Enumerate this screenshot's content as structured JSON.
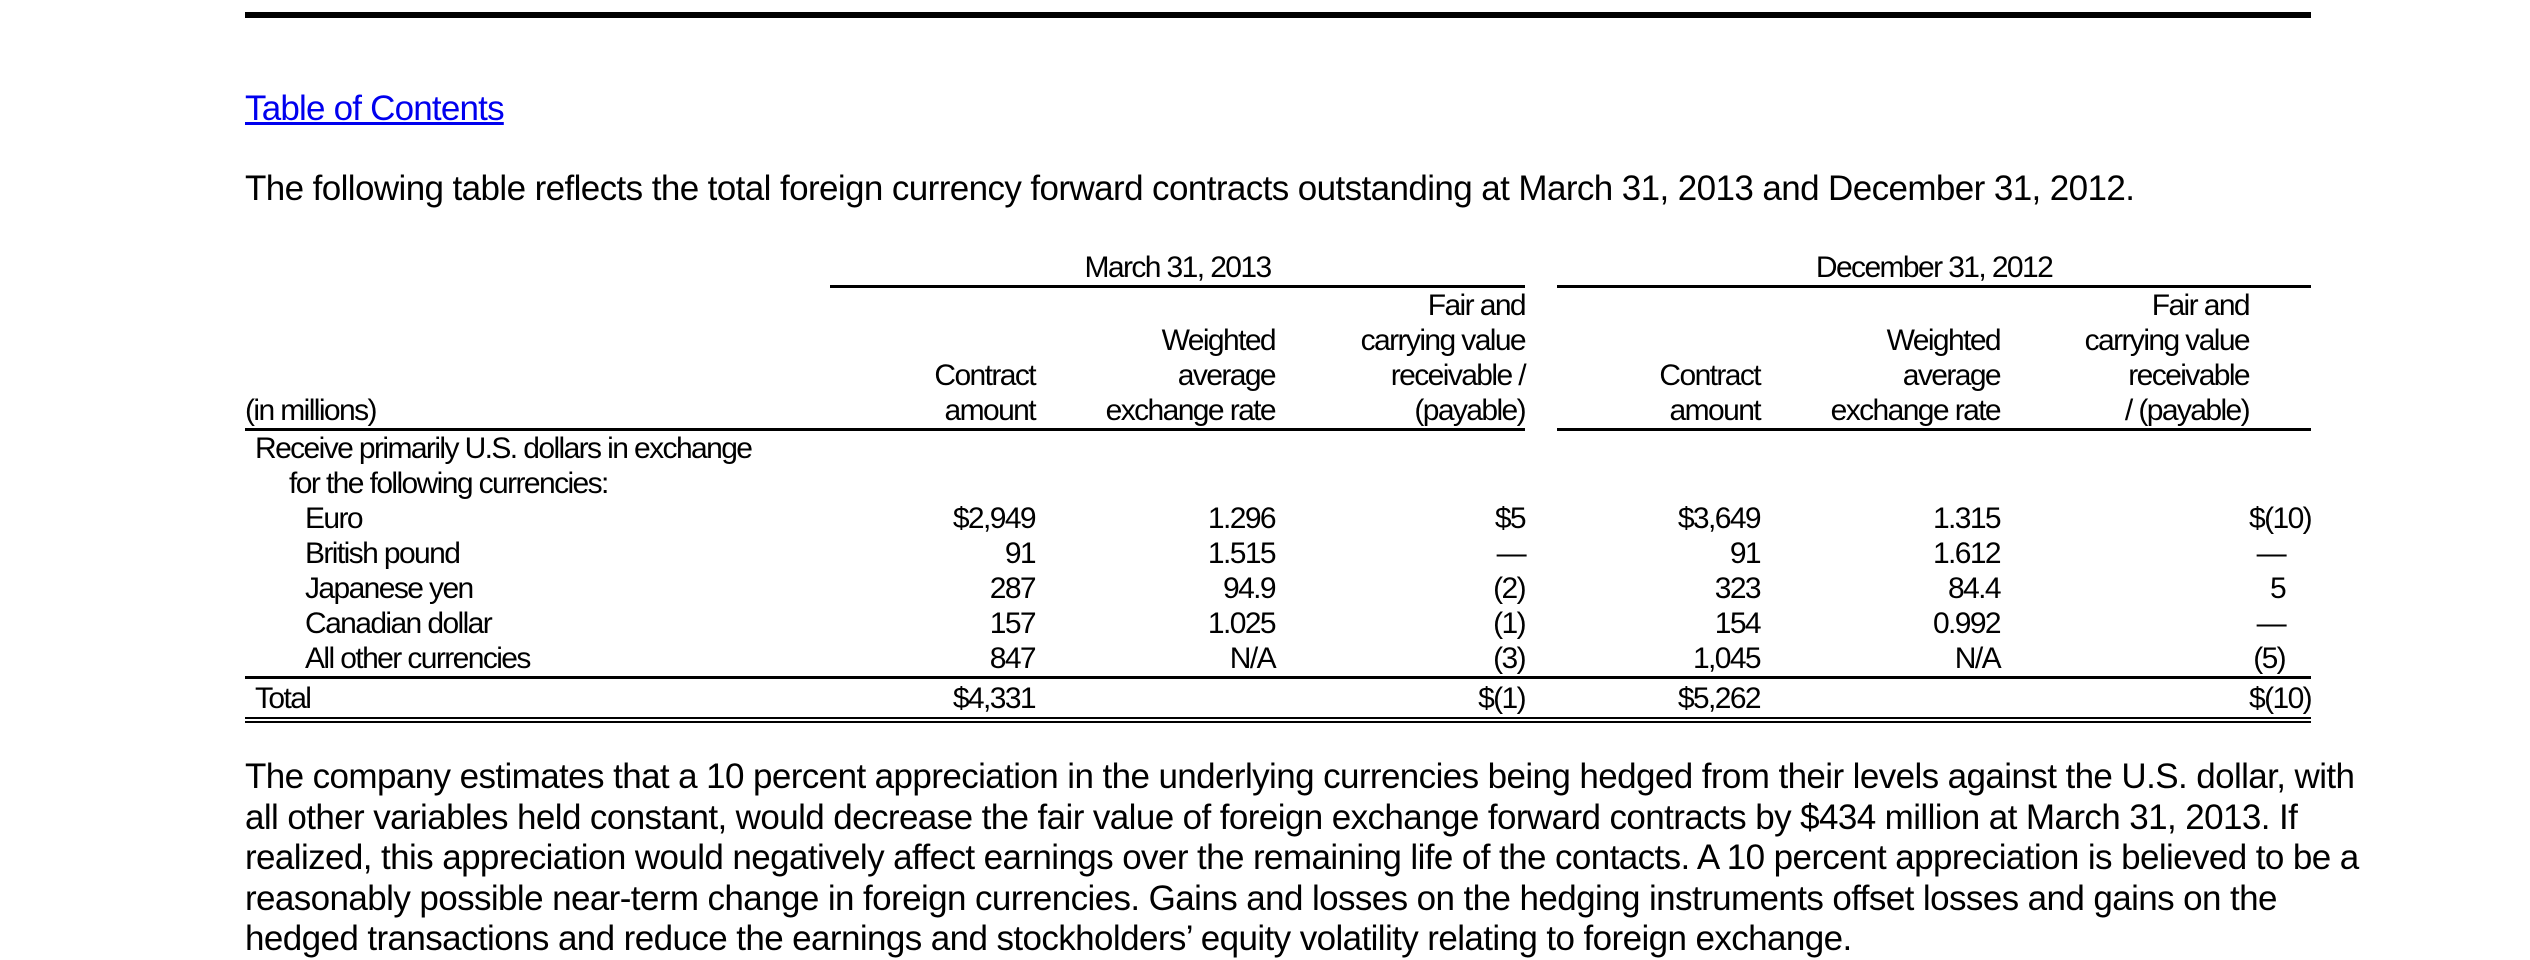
{
  "toc_link": "Table of Contents",
  "intro": "The following table reflects the total foreign currency forward contracts outstanding at March 31, 2013 and December 31, 2012.",
  "table": {
    "periods": [
      "March 31, 2013",
      "December 31, 2012"
    ],
    "units_label": "(in millions)",
    "column_headers": [
      [
        "Contract",
        "amount"
      ],
      [
        "Weighted",
        "average",
        "exchange rate"
      ],
      [
        "Fair and",
        "carrying value",
        "receivable /",
        "(payable)"
      ],
      [
        "Contract",
        "amount"
      ],
      [
        "Weighted",
        "average",
        "exchange rate"
      ],
      [
        "Fair and",
        "carrying value",
        "receivable",
        "/ (payable)"
      ]
    ],
    "section_label_line1": "Receive primarily U.S. dollars in exchange",
    "section_label_line2": "for the following currencies:",
    "rows": [
      {
        "label": "Euro",
        "c1": "$2,949",
        "c2": "1.296",
        "c3": "$5",
        "c4": "$3,649",
        "c5": "1.315",
        "c6": "$(10)"
      },
      {
        "label": "British pound",
        "c1": "91",
        "c2": "1.515",
        "c3": "—",
        "c4": "91",
        "c5": "1.612",
        "c6": "—"
      },
      {
        "label": "Japanese yen",
        "c1": "287",
        "c2": "94.9",
        "c3": "(2)",
        "c4": "323",
        "c5": "84.4",
        "c6": "5"
      },
      {
        "label": "Canadian dollar",
        "c1": "157",
        "c2": "1.025",
        "c3": "(1)",
        "c4": "154",
        "c5": "0.992",
        "c6": "—"
      },
      {
        "label": "All other currencies",
        "c1": "847",
        "c2": "N/A",
        "c3": "(3)",
        "c4": "1,045",
        "c5": "N/A",
        "c6": "(5)"
      }
    ],
    "total": {
      "label": "Total",
      "c1": "$4,331",
      "c3": "$(1)",
      "c4": "$5,262",
      "c6": "$(10)"
    }
  },
  "closing_lines": [
    "The company estimates that a 10 percent appreciation in the underlying currencies being hedged from their levels against the U.S. dollar, with",
    "all other variables held constant, would decrease the fair value of foreign exchange forward contracts by $434 million at March 31, 2013.  If",
    "realized, this appreciation would negatively affect earnings over the remaining life of the contacts.  A 10 percent appreciation is believed to be a",
    "reasonably possible near-term change in foreign currencies.  Gains and losses on the hedging instruments offset losses and gains on the",
    "hedged transactions and reduce the earnings and stockholders’ equity volatility relating to foreign exchange."
  ]
}
